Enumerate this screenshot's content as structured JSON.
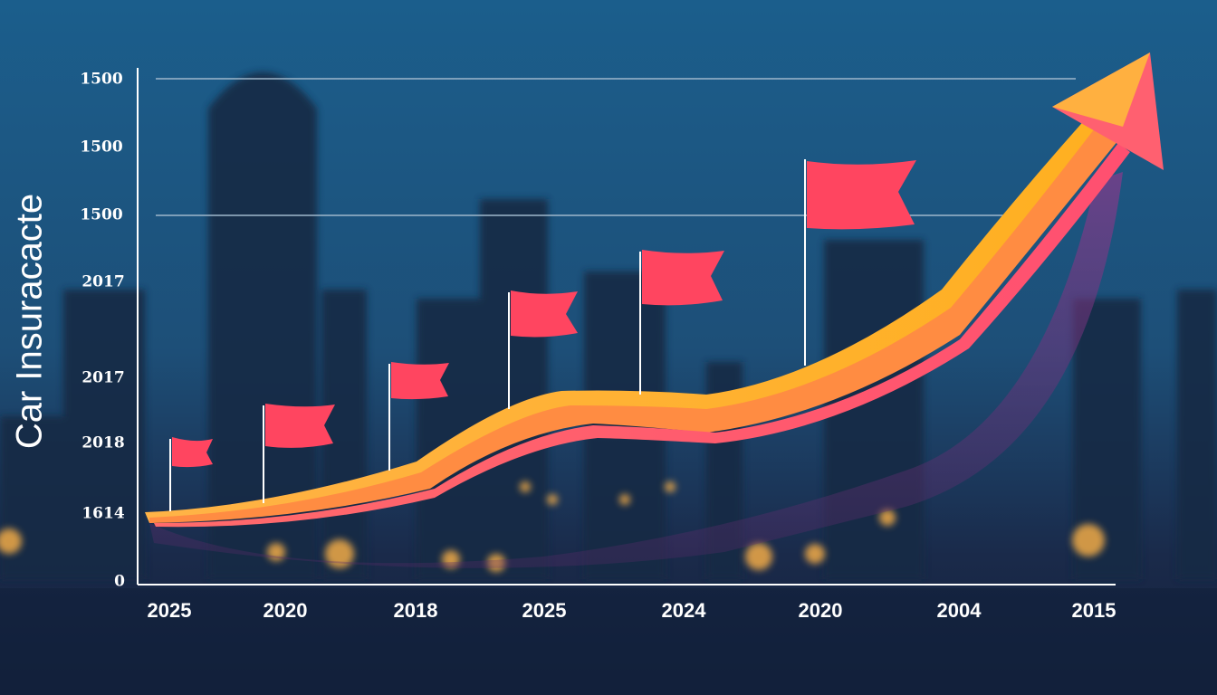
{
  "chart_data": {
    "type": "line",
    "title": "Car Insuracacte",
    "y_labels": [
      "1500",
      "1500",
      "1500",
      "2017",
      "2017",
      "2018",
      "1614",
      "0"
    ],
    "categories": [
      "2025",
      "2020",
      "2018",
      "2025",
      "2024",
      "2020",
      "2004",
      "2015"
    ]
  }
}
